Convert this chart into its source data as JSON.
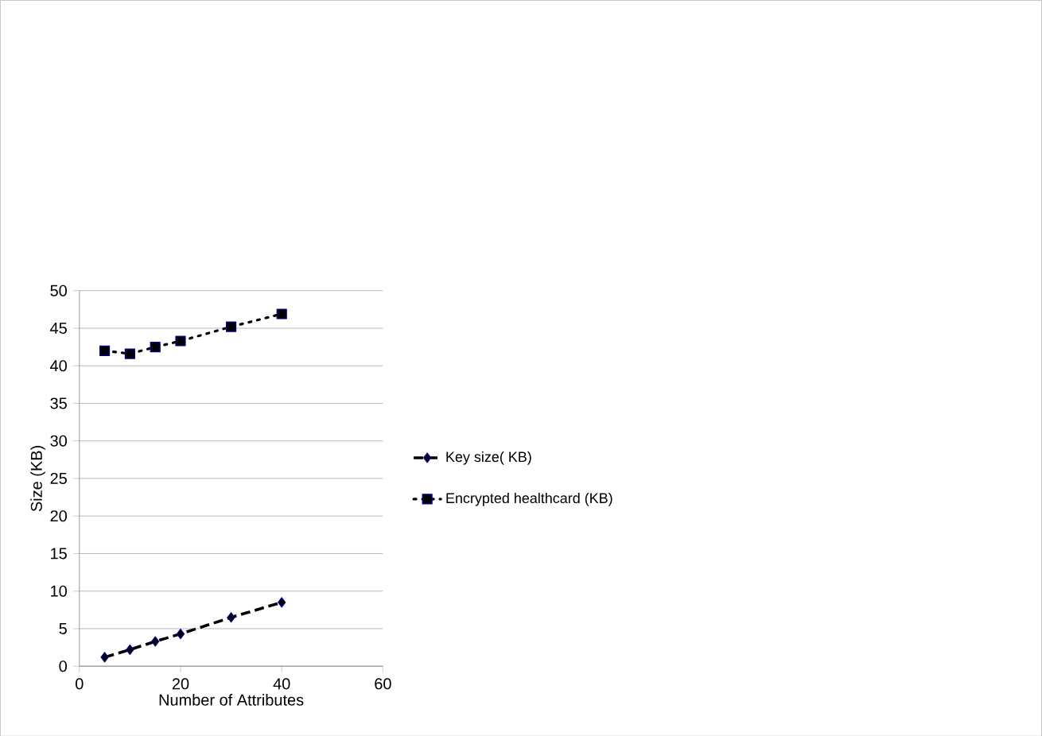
{
  "chart_data": {
    "type": "line",
    "xlabel": "Number of Attributes",
    "ylabel": "Size (KB)",
    "x": [
      5,
      10,
      15,
      20,
      30,
      40
    ],
    "series": [
      {
        "name": "Key size( KB)",
        "color": "#000000",
        "marker": "diamond",
        "line_style": "dashed",
        "values": [
          1.2,
          2.2,
          3.3,
          4.3,
          6.5,
          8.5
        ]
      },
      {
        "name": "Encrypted healthcard (KB)",
        "color": "#000000",
        "marker": "square",
        "line_style": "dotted",
        "values": [
          42,
          41.6,
          42.5,
          43.3,
          45.2,
          46.9
        ]
      }
    ],
    "xlim": [
      0,
      60
    ],
    "xticks": [
      0,
      20,
      40,
      60
    ],
    "ylim": [
      0,
      50
    ],
    "yticks": [
      0,
      5,
      10,
      15,
      20,
      25,
      30,
      35,
      40,
      45,
      50
    ],
    "grid": "y",
    "legend": "right"
  }
}
